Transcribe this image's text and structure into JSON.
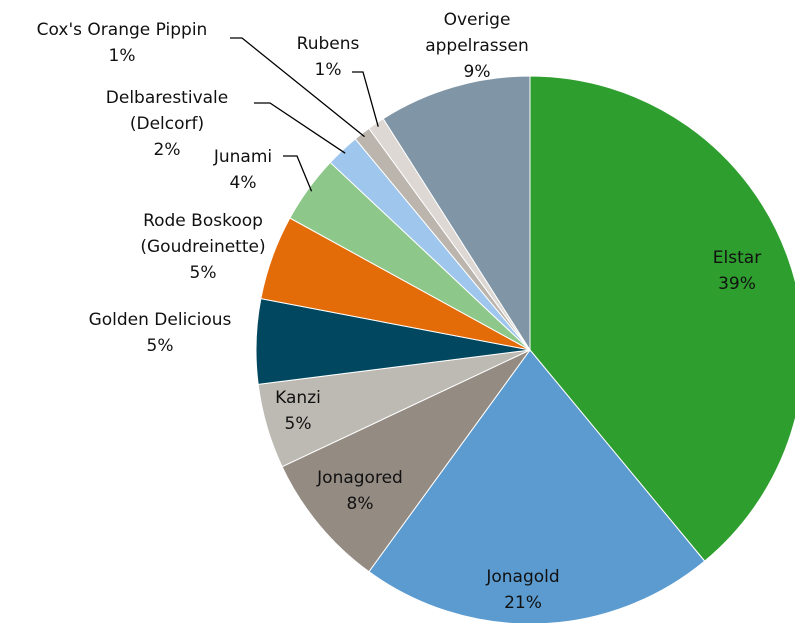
{
  "chart_data": {
    "type": "pie",
    "categories": [
      "Elstar",
      "Jonagold",
      "Jonagored",
      "Kanzi",
      "Golden Delicious",
      "Rode Boskoop (Goudreinette)",
      "Junami",
      "Delbarestivale (Delcorf)",
      "Cox's Orange Pippin",
      "Rubens",
      "Overige appelrassen"
    ],
    "values": [
      39,
      21,
      8,
      5,
      5,
      5,
      4,
      2,
      1,
      1,
      9
    ],
    "value_labels": [
      "39%",
      "21%",
      "8%",
      "5%",
      "5%",
      "5%",
      "4%",
      "2%",
      "1%",
      "1%",
      "9%"
    ],
    "colors": [
      "#2e9e2e",
      "#5b9bd0",
      "#948b83",
      "#bdbab3",
      "#00475f",
      "#e36c09",
      "#8dc78a",
      "#9fc6ec",
      "#bbb5ae",
      "#ddd8d3",
      "#8095a5"
    ]
  }
}
